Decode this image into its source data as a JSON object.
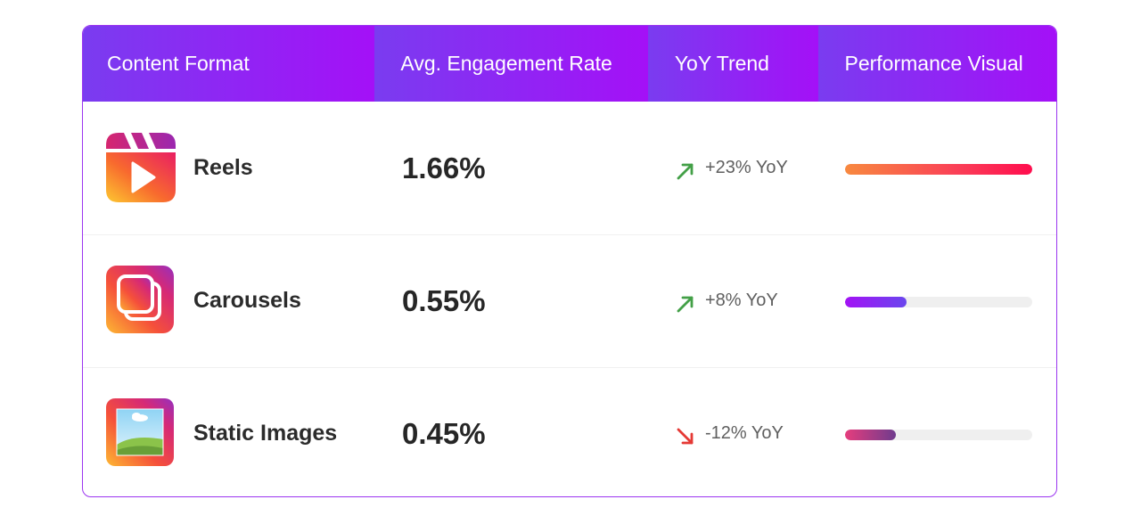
{
  "header": {
    "col_format": "Content Format",
    "col_rate": "Avg. Engagement Rate",
    "col_trend": "YoY Trend",
    "col_visual": "Performance Visual"
  },
  "rows": [
    {
      "icon": "reels-icon",
      "name": "Reels",
      "rate": "1.66%",
      "trend_direction": "up",
      "trend_text": "+23% YoY",
      "trend_color": "#43a047",
      "performance_fraction": 1.0
    },
    {
      "icon": "carousel-icon",
      "name": "Carousels",
      "rate": "0.55%",
      "trend_direction": "up",
      "trend_text": "+8% YoY",
      "trend_color": "#43a047",
      "performance_fraction": 0.33
    },
    {
      "icon": "image-icon",
      "name": "Static Images",
      "rate": "0.45%",
      "trend_direction": "down",
      "trend_text": "-12% YoY",
      "trend_color": "#e53935",
      "performance_fraction": 0.27
    }
  ],
  "colors": {
    "header_gradient_start": "#7a3cf0",
    "header_gradient_end": "#a410f7",
    "border": "#9b35f0"
  }
}
